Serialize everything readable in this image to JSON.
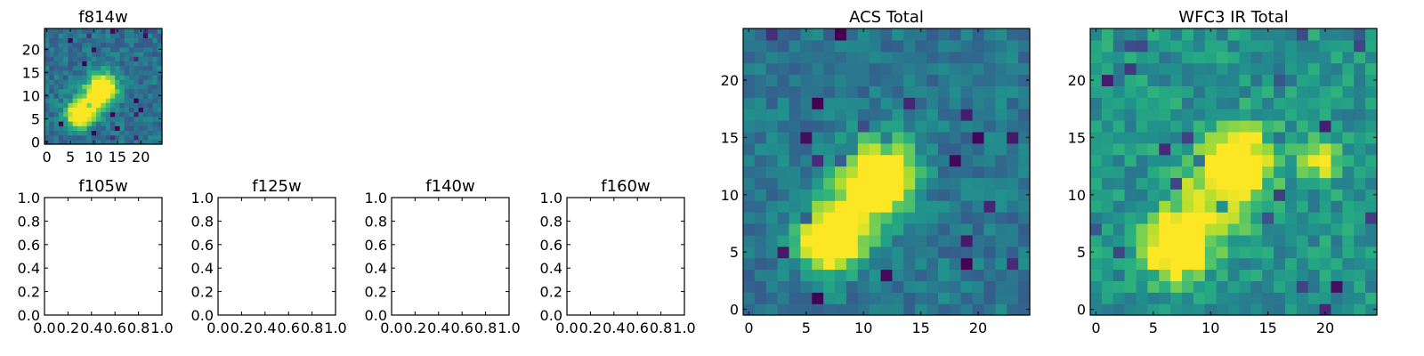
{
  "chart_data": [
    {
      "type": "heatmap",
      "title": "f814w",
      "grid_size": 25,
      "xlim": [
        -0.5,
        24.5
      ],
      "ylim": [
        -0.5,
        24.5
      ],
      "xticks": [
        "0",
        "5",
        "10",
        "15",
        "20"
      ],
      "xtick_values": [
        0,
        5,
        10,
        15,
        20
      ],
      "yticks": [
        "0",
        "5",
        "10",
        "15",
        "20"
      ],
      "ytick_values": [
        0,
        5,
        10,
        15,
        20
      ],
      "colormap": "viridis",
      "sources": [
        {
          "x": 7,
          "y": 6,
          "peak": 1.0,
          "sigma": 1.8
        },
        {
          "x": 12,
          "y": 12,
          "peak": 0.85,
          "sigma": 2.1
        },
        {
          "x": 10,
          "y": 9,
          "peak": 0.45,
          "sigma": 2.4
        }
      ],
      "background": 0.38,
      "noise": 0.12,
      "seed": 11
    },
    {
      "type": "empty",
      "title": "f105w",
      "xlim": [
        0,
        1
      ],
      "ylim": [
        0,
        1
      ],
      "xticks": [
        "0.0",
        "0.2",
        "0.4",
        "0.6",
        "0.8",
        "1.0"
      ],
      "yticks": [
        "0.0",
        "0.2",
        "0.4",
        "0.6",
        "0.8",
        "1.0"
      ]
    },
    {
      "type": "empty",
      "title": "f125w",
      "xlim": [
        0,
        1
      ],
      "ylim": [
        0,
        1
      ],
      "xticks": [
        "0.0",
        "0.2",
        "0.4",
        "0.6",
        "0.8",
        "1.0"
      ],
      "yticks": [
        "0.0",
        "0.2",
        "0.4",
        "0.6",
        "0.8",
        "1.0"
      ]
    },
    {
      "type": "empty",
      "title": "f140w",
      "xlim": [
        0,
        1
      ],
      "ylim": [
        0,
        1
      ],
      "xticks": [
        "0.0",
        "0.2",
        "0.4",
        "0.6",
        "0.8",
        "1.0"
      ],
      "yticks": [
        "0.0",
        "0.2",
        "0.4",
        "0.6",
        "0.8",
        "1.0"
      ]
    },
    {
      "type": "empty",
      "title": "f160w",
      "xlim": [
        0,
        1
      ],
      "ylim": [
        0,
        1
      ],
      "xticks": [
        "0.0",
        "0.2",
        "0.4",
        "0.6",
        "0.8",
        "1.0"
      ],
      "yticks": [
        "0.0",
        "0.2",
        "0.4",
        "0.6",
        "0.8",
        "1.0"
      ]
    },
    {
      "type": "heatmap",
      "title": "ACS Total",
      "grid_size": 25,
      "xlim": [
        -0.5,
        24.5
      ],
      "ylim": [
        -0.5,
        24.5
      ],
      "xticks": [
        "0",
        "5",
        "10",
        "15",
        "20"
      ],
      "xtick_values": [
        0,
        5,
        10,
        15,
        20
      ],
      "yticks": [
        "0",
        "5",
        "10",
        "15",
        "20"
      ],
      "ytick_values": [
        0,
        5,
        10,
        15,
        20
      ],
      "colormap": "viridis",
      "sources": [
        {
          "x": 7,
          "y": 6,
          "peak": 1.0,
          "sigma": 1.8
        },
        {
          "x": 11.5,
          "y": 12,
          "peak": 0.9,
          "sigma": 2.0
        },
        {
          "x": 9.5,
          "y": 9,
          "peak": 0.4,
          "sigma": 2.5
        }
      ],
      "background": 0.4,
      "noise": 0.11,
      "seed": 23
    },
    {
      "type": "heatmap",
      "title": "WFC3 IR Total",
      "grid_size": 25,
      "xlim": [
        -0.5,
        24.5
      ],
      "ylim": [
        -0.5,
        24.5
      ],
      "xticks": [
        "0",
        "5",
        "10",
        "15",
        "20"
      ],
      "xtick_values": [
        0,
        5,
        10,
        15,
        20
      ],
      "yticks": [
        "0",
        "5",
        "10",
        "15",
        "20"
      ],
      "ytick_values": [
        0,
        5,
        10,
        15,
        20
      ],
      "colormap": "viridis",
      "sources": [
        {
          "x": 7,
          "y": 5.5,
          "peak": 0.95,
          "sigma": 1.8
        },
        {
          "x": 12.5,
          "y": 13,
          "peak": 0.75,
          "sigma": 2.0
        },
        {
          "x": 19.5,
          "y": 13,
          "peak": 0.45,
          "sigma": 1.2
        },
        {
          "x": 10,
          "y": 9.5,
          "peak": 0.4,
          "sigma": 2.4
        }
      ],
      "background": 0.52,
      "noise": 0.14,
      "seed": 37
    }
  ]
}
